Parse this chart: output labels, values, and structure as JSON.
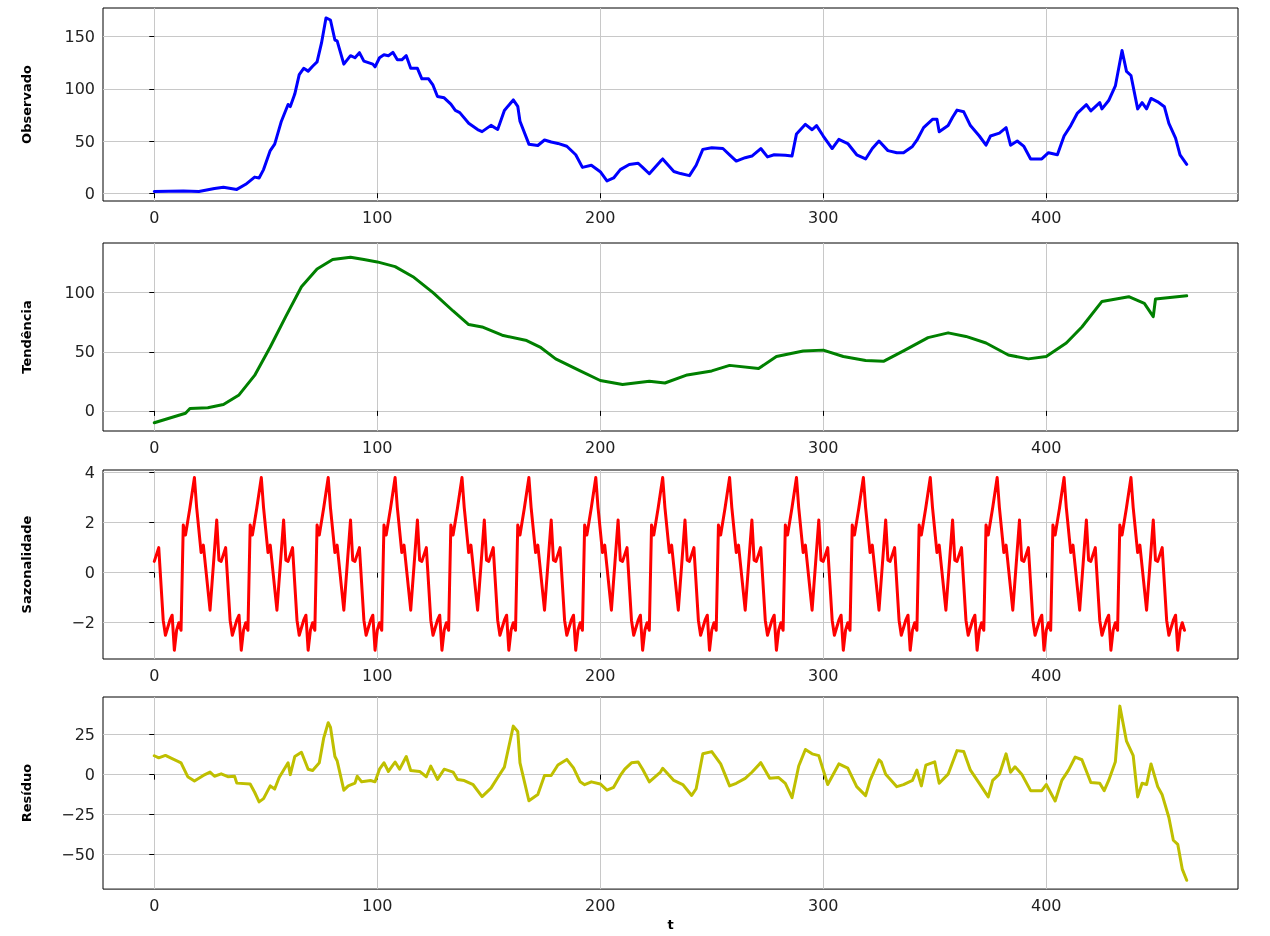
{
  "chart_data": [
    {
      "type": "line",
      "ylabel": "Observado",
      "color": "#0000ff",
      "grid": true,
      "x": [
        0,
        13,
        20,
        27,
        31,
        37,
        41,
        45,
        47,
        49,
        52,
        54,
        57,
        60,
        61,
        63,
        65,
        67,
        69,
        71,
        73,
        75,
        77,
        79,
        81,
        82,
        85,
        88,
        90,
        92,
        94,
        98,
        99,
        101,
        103,
        105,
        107,
        109,
        111,
        113,
        115,
        118,
        120,
        123,
        125,
        127,
        130,
        133,
        135,
        137,
        141,
        145,
        147,
        151,
        154,
        157,
        161,
        163,
        164,
        168,
        172,
        175,
        178,
        181,
        185,
        189,
        192,
        196,
        200,
        203,
        206,
        209,
        213,
        217,
        219,
        222,
        227,
        228,
        233,
        236,
        240,
        243,
        246,
        250,
        255,
        258,
        261,
        265,
        268,
        272,
        275,
        278,
        283,
        286,
        288,
        292,
        295,
        297,
        300,
        304,
        307,
        311,
        315,
        319,
        322,
        325,
        329,
        333,
        336,
        340,
        342,
        345,
        349,
        351,
        352,
        356,
        358,
        360,
        363,
        366,
        370,
        373,
        375,
        379,
        382,
        384,
        387,
        390,
        393,
        398,
        401,
        405,
        408,
        411,
        414,
        418,
        420,
        424,
        425,
        428,
        431,
        434,
        436,
        438,
        441,
        443,
        445,
        447,
        450,
        453,
        455,
        458,
        460,
        463
      ],
      "values": [
        1.6,
        2,
        1.6,
        4.5,
        5.7,
        3.6,
        8.5,
        15.4,
        14.6,
        22.6,
        40.8,
        47,
        69,
        85,
        83,
        95,
        113.6,
        119.7,
        117,
        121.7,
        125.8,
        144,
        168,
        166,
        146.8,
        146,
        123.7,
        131.8,
        129.8,
        134.7,
        126.6,
        123.7,
        121,
        129.8,
        132.6,
        131.8,
        135,
        127.8,
        127.8,
        131.8,
        119.7,
        119.7,
        109.6,
        109.6,
        103.5,
        92.6,
        91.4,
        85.3,
        79.3,
        77.2,
        67,
        61,
        59,
        65,
        61,
        79.3,
        89.4,
        83.3,
        69,
        47,
        45.7,
        51,
        49,
        47.7,
        45,
        36.8,
        24.7,
        26.7,
        20.6,
        11.7,
        14.6,
        22.6,
        27.5,
        28.7,
        24.7,
        18.6,
        30.7,
        32.8,
        20.8,
        18.8,
        16.8,
        26.8,
        42,
        43.6,
        42.8,
        36.8,
        30.8,
        34,
        35.6,
        42.8,
        34.8,
        36.8,
        36.4,
        35.6,
        56.8,
        66,
        60.8,
        64.8,
        54.8,
        42.8,
        51.6,
        47.6,
        36.8,
        32.8,
        42.8,
        50,
        40.8,
        38.8,
        38.8,
        44.8,
        50.8,
        62.8,
        70.8,
        70.8,
        58.8,
        64.8,
        72.8,
        79.6,
        78,
        64.8,
        54.8,
        46,
        54.8,
        57.6,
        62.8,
        46,
        50,
        44.8,
        32.8,
        32.8,
        38.8,
        36.8,
        54.8,
        64.8,
        76.8,
        84.8,
        78.8,
        86.8,
        80.8,
        88.8,
        102.8,
        136.8,
        116.8,
        112.8,
        80.8,
        86.8,
        80.8,
        90.8,
        87.6,
        82.8,
        66.8,
        52.8,
        36.8,
        27.6
      ],
      "xlim": [
        -23,
        486
      ],
      "xticks": [
        0,
        100,
        200,
        300,
        400
      ],
      "ylim": [
        -7.5,
        177.5
      ],
      "yticks": [
        0,
        50,
        100,
        150
      ]
    },
    {
      "type": "line",
      "ylabel": "Tendência",
      "color": "#008000",
      "grid": true,
      "x": [
        0,
        14,
        16,
        24,
        31,
        38,
        45,
        52,
        59,
        66,
        73,
        80,
        88,
        94,
        100,
        108,
        116,
        125,
        134,
        141,
        147,
        156,
        167,
        173,
        180,
        191,
        200,
        210,
        222,
        229,
        239,
        250,
        258,
        271,
        279,
        291,
        300,
        309,
        319,
        327,
        336,
        347,
        356,
        364,
        373,
        383,
        392,
        400,
        409,
        416,
        425,
        437,
        444,
        448,
        449,
        463
      ],
      "values": [
        -10,
        -2,
        2,
        2.7,
        5.4,
        13.5,
        30,
        54,
        80,
        105,
        120,
        128,
        130,
        128,
        126,
        122,
        113.5,
        100,
        84.5,
        73,
        71,
        64,
        59.5,
        54,
        44,
        33.8,
        25.7,
        22.3,
        25,
        23.6,
        30.4,
        33.8,
        38.5,
        35.8,
        46,
        50.7,
        51.4,
        46,
        42.6,
        41.9,
        50.7,
        62,
        66,
        63,
        57.4,
        47.3,
        44,
        46,
        57.4,
        71,
        92.6,
        96.6,
        91,
        79.7,
        94.6,
        97.3
      ],
      "xlim": [
        -23,
        486
      ],
      "xticks": [
        0,
        100,
        200,
        300,
        400
      ],
      "ylim": [
        -17,
        142
      ],
      "yticks": [
        0,
        50,
        100
      ]
    },
    {
      "type": "line",
      "ylabel": "Sazonalidade",
      "color": "#ff0000",
      "grid": true,
      "x": [
        0,
        2,
        4,
        5,
        7,
        8,
        9,
        10,
        11,
        12,
        13,
        14,
        16,
        18,
        19,
        21,
        22,
        25,
        28,
        29,
        30,
        32,
        34,
        35,
        37,
        38,
        39,
        40,
        41,
        42,
        43,
        44,
        46,
        48,
        49,
        51,
        52,
        55,
        58,
        59,
        60,
        62,
        64,
        65,
        67,
        68,
        69,
        70,
        71,
        72,
        73,
        74,
        76,
        78,
        79,
        81,
        82,
        85,
        88,
        89,
        90,
        92,
        94,
        95,
        97,
        98,
        99,
        100,
        101,
        102,
        103,
        104,
        106,
        108,
        109,
        111,
        112,
        115,
        118,
        119,
        120,
        122,
        124,
        125,
        127,
        128,
        129,
        130,
        131,
        132,
        133,
        134,
        136,
        138,
        139,
        141,
        142,
        145,
        148,
        149,
        150,
        152,
        154,
        155,
        157,
        158,
        159,
        160,
        161,
        162,
        163,
        164,
        166,
        168,
        169,
        171,
        172,
        175,
        178,
        179,
        180,
        182,
        184,
        185,
        187,
        188,
        189,
        190,
        191,
        192,
        193,
        194,
        196,
        198,
        199,
        201,
        202,
        205,
        208,
        209,
        210,
        212,
        214,
        215,
        217,
        218,
        219,
        220,
        221,
        222,
        223,
        224,
        226,
        228,
        229,
        231,
        232,
        235,
        238,
        239,
        240,
        242,
        244,
        245,
        247,
        248,
        249,
        250,
        251,
        252,
        253,
        254,
        256,
        258,
        259,
        261,
        262,
        265,
        268,
        269,
        270,
        272,
        274,
        275,
        277,
        278,
        279,
        280,
        281,
        282,
        283,
        284,
        286,
        288,
        289,
        291,
        292,
        295,
        298,
        299,
        300,
        302,
        304,
        305,
        307,
        308,
        309,
        310,
        311,
        312,
        313,
        314,
        316,
        318,
        319,
        321,
        322,
        325,
        328,
        329,
        330,
        332,
        334,
        335,
        337,
        338,
        339,
        340,
        341,
        342,
        343,
        344,
        346,
        348,
        349,
        351,
        352,
        355,
        358,
        359,
        360,
        362,
        364,
        365,
        367,
        368,
        369,
        370,
        371,
        372,
        373,
        374,
        376,
        378,
        379,
        381,
        382,
        385,
        388,
        389,
        390,
        392,
        394,
        395,
        397,
        398,
        399,
        400,
        401,
        402,
        403,
        404,
        406,
        408,
        409,
        411,
        412,
        415,
        418,
        419,
        420,
        422,
        424,
        425,
        427,
        428,
        429,
        430,
        431,
        432,
        433,
        434,
        436,
        438,
        439,
        441,
        442,
        445,
        448,
        449,
        450,
        452,
        454,
        455,
        457,
        458,
        459,
        460,
        461,
        462
      ],
      "values": [
        0.45,
        1.0,
        -1.9,
        -2.5,
        -1.9,
        -1.7,
        -3.1,
        -2.3,
        -2.0,
        -2.3,
        1.9,
        1.5,
        2.6,
        3.8,
        2.6,
        0.8,
        1.1,
        -1.5,
        2.1,
        0.5,
        0.45,
        1.0,
        -1.9,
        -2.5,
        -1.9,
        -1.7,
        -3.1,
        -2.3,
        -2.0,
        -2.3,
        1.9,
        1.5,
        2.6,
        3.8,
        2.6,
        0.8,
        1.1,
        -1.5,
        2.1,
        0.5,
        0.45,
        1.0,
        -1.9,
        -2.5,
        -1.9,
        -1.7,
        -3.1,
        -2.3,
        -2.0,
        -2.3,
        1.9,
        1.5,
        2.6,
        3.8,
        2.6,
        0.8,
        1.1,
        -1.5,
        2.1,
        0.5,
        0.45,
        1.0,
        -1.9,
        -2.5,
        -1.9,
        -1.7,
        -3.1,
        -2.3,
        -2.0,
        -2.3,
        1.9,
        1.5,
        2.6,
        3.8,
        2.6,
        0.8,
        1.1,
        -1.5,
        2.1,
        0.5,
        0.45,
        1.0,
        -1.9,
        -2.5,
        -1.9,
        -1.7,
        -3.1,
        -2.3,
        -2.0,
        -2.3,
        1.9,
        1.5,
        2.6,
        3.8,
        2.6,
        0.8,
        1.1,
        -1.5,
        2.1,
        0.5,
        0.45,
        1.0,
        -1.9,
        -2.5,
        -1.9,
        -1.7,
        -3.1,
        -2.3,
        -2.0,
        -2.3,
        1.9,
        1.5,
        2.6,
        3.8,
        2.6,
        0.8,
        1.1,
        -1.5,
        2.1,
        0.5,
        0.45,
        1.0,
        -1.9,
        -2.5,
        -1.9,
        -1.7,
        -3.1,
        -2.3,
        -2.0,
        -2.3,
        1.9,
        1.5,
        2.6,
        3.8,
        2.6,
        0.8,
        1.1,
        -1.5,
        2.1,
        0.5,
        0.45,
        1.0,
        -1.9,
        -2.5,
        -1.9,
        -1.7,
        -3.1,
        -2.3,
        -2.0,
        -2.3,
        1.9,
        1.5,
        2.6,
        3.8,
        2.6,
        0.8,
        1.1,
        -1.5,
        2.1,
        0.5,
        0.45,
        1.0,
        -1.9,
        -2.5,
        -1.9,
        -1.7,
        -3.1,
        -2.3,
        -2.0,
        -2.3,
        1.9,
        1.5,
        2.6,
        3.8,
        2.6,
        0.8,
        1.1,
        -1.5,
        2.1,
        0.5,
        0.45,
        1.0,
        -1.9,
        -2.5,
        -1.9,
        -1.7,
        -3.1,
        -2.3,
        -2.0,
        -2.3,
        1.9,
        1.5,
        2.6,
        3.8,
        2.6,
        0.8,
        1.1,
        -1.5,
        2.1,
        0.5,
        0.45,
        1.0,
        -1.9,
        -2.5,
        -1.9,
        -1.7,
        -3.1,
        -2.3,
        -2.0,
        -2.3,
        1.9,
        1.5,
        2.6,
        3.8,
        2.6,
        0.8,
        1.1,
        -1.5,
        2.1,
        0.5,
        0.45,
        1.0,
        -1.9,
        -2.5,
        -1.9,
        -1.7,
        -3.1,
        -2.3,
        -2.0,
        -2.3,
        1.9,
        1.5,
        2.6,
        3.8,
        2.6,
        0.8,
        1.1,
        -1.5,
        2.1,
        0.5,
        0.45,
        1.0,
        -1.9,
        -2.5,
        -1.9,
        -1.7,
        -3.1,
        -2.3,
        -2.0,
        -2.3,
        1.9,
        1.5,
        2.6,
        3.8,
        2.6,
        0.8,
        1.1,
        -1.5,
        2.1,
        0.5,
        0.45,
        1.0,
        -1.9,
        -2.5,
        -1.9,
        -1.7,
        -3.1,
        -2.3,
        -2.0,
        -2.3,
        1.9,
        1.5,
        2.6,
        3.8,
        2.6,
        0.8,
        1.1,
        -1.5,
        2.1,
        0.5,
        0.45,
        1.0,
        -1.9,
        -2.5,
        -1.9,
        -1.7,
        -3.1,
        -2.3,
        -2.0,
        -2.3,
        1.9,
        1.5,
        2.6,
        3.8,
        2.6,
        0.8,
        1.1,
        -1.5,
        2.1,
        0.5,
        0.45,
        1.0,
        -1.9,
        -2.5,
        -1.9,
        -1.7,
        -3.1,
        -2.3,
        -2.0,
        -2.3
      ],
      "xlim": [
        -23,
        486
      ],
      "xticks": [
        0,
        100,
        200,
        300,
        400
      ],
      "ylim": [
        -3.45,
        4.1
      ],
      "yticks": [
        -2,
        0,
        2,
        4
      ]
    },
    {
      "type": "line",
      "ylabel": "Resíduo",
      "xlabel": "t",
      "color": "#bfbf00",
      "grid": true,
      "x": [
        0,
        2,
        5,
        8,
        12,
        15,
        18,
        22,
        25,
        27,
        30,
        33,
        36,
        37,
        43,
        45,
        47,
        49,
        52,
        54,
        56,
        60,
        61,
        63,
        66,
        69,
        71,
        74,
        76,
        78,
        79,
        81,
        82,
        85,
        87,
        90,
        91,
        93,
        97,
        99,
        101,
        103,
        105,
        108,
        110,
        113,
        115,
        119,
        122,
        124,
        127,
        130,
        134,
        136,
        139,
        143,
        147,
        151,
        154,
        157,
        161,
        163,
        164,
        168,
        172,
        175,
        178,
        181,
        185,
        188,
        191,
        193,
        196,
        200,
        203,
        206,
        209,
        211,
        214,
        217,
        219,
        222,
        227,
        228,
        233,
        237,
        241,
        243,
        246,
        250,
        254,
        258,
        261,
        265,
        268,
        272,
        276,
        280,
        283,
        286,
        289,
        292,
        295,
        298,
        302,
        307,
        311,
        315,
        319,
        321,
        325,
        326,
        328,
        333,
        336,
        340,
        342,
        344,
        346,
        350,
        352,
        356,
        360,
        363,
        366,
        370,
        374,
        376,
        379,
        382,
        384,
        386,
        389,
        393,
        398,
        400,
        404,
        407,
        410,
        413,
        416,
        420,
        424,
        426,
        428,
        431,
        433,
        436,
        439,
        441,
        443,
        445,
        447,
        450,
        452,
        455,
        457,
        459,
        461,
        463
      ],
      "values": [
        11.8,
        10.5,
        12,
        10,
        7.4,
        -1.3,
        -4,
        -0.5,
        1.6,
        -1,
        0.5,
        -1.3,
        -1,
        -5.3,
        -5.8,
        -11,
        -17,
        -15,
        -7,
        -9,
        -1.8,
        7.4,
        0,
        11.3,
        14,
        3.4,
        2.6,
        7.4,
        23,
        32.4,
        29.7,
        11.3,
        8.7,
        -9.7,
        -7,
        -5.3,
        -1,
        -4.5,
        -3.7,
        -4.5,
        3.4,
        7.4,
        2,
        7.9,
        3.4,
        11.3,
        2.6,
        2,
        -1.3,
        5.3,
        -3,
        3.4,
        1.6,
        -3,
        -3.7,
        -6.3,
        -13.7,
        -8.4,
        -1.8,
        4.7,
        30.3,
        27,
        7.4,
        -16.3,
        -12.4,
        -0.5,
        -0.5,
        6,
        9.5,
        4.2,
        -4.5,
        -6.3,
        -4.5,
        -5.8,
        -9.7,
        -7.9,
        -0.5,
        3.4,
        7.4,
        7.9,
        3.4,
        -4.5,
        1.6,
        4,
        -3.6,
        -6.2,
        -13,
        -8.8,
        13,
        14.4,
        6.7,
        -7,
        -5.4,
        -2.3,
        1.5,
        7.5,
        -2.3,
        -1.8,
        -5.4,
        -14.4,
        5.4,
        15.7,
        13,
        11.9,
        -6.2,
        6.7,
        4.1,
        -7.5,
        -13.1,
        -3.6,
        9.3,
        8,
        0.3,
        -7.5,
        -6.2,
        -3.6,
        2.8,
        -7,
        5.9,
        8,
        -5.4,
        0.3,
        15,
        14.4,
        2.8,
        -5.4,
        -13.9,
        -3.6,
        0.3,
        13,
        1.5,
        4.9,
        0.3,
        -10,
        -10,
        -6.2,
        -16.5,
        -3.6,
        2.8,
        11,
        9.3,
        -4.9,
        -5.4,
        -10,
        -3.6,
        8,
        42.8,
        20.9,
        11.9,
        -13.9,
        -5.4,
        -6.2,
        6.7,
        -7.5,
        -12.6,
        -26.8,
        -41,
        -43.6,
        -59,
        -66
      ],
      "xlim": [
        -23,
        486
      ],
      "xticks": [
        0,
        100,
        200,
        300,
        400
      ],
      "ylim": [
        -71.5,
        48.5
      ],
      "yticks": [
        -50,
        -25,
        0,
        25
      ]
    }
  ]
}
